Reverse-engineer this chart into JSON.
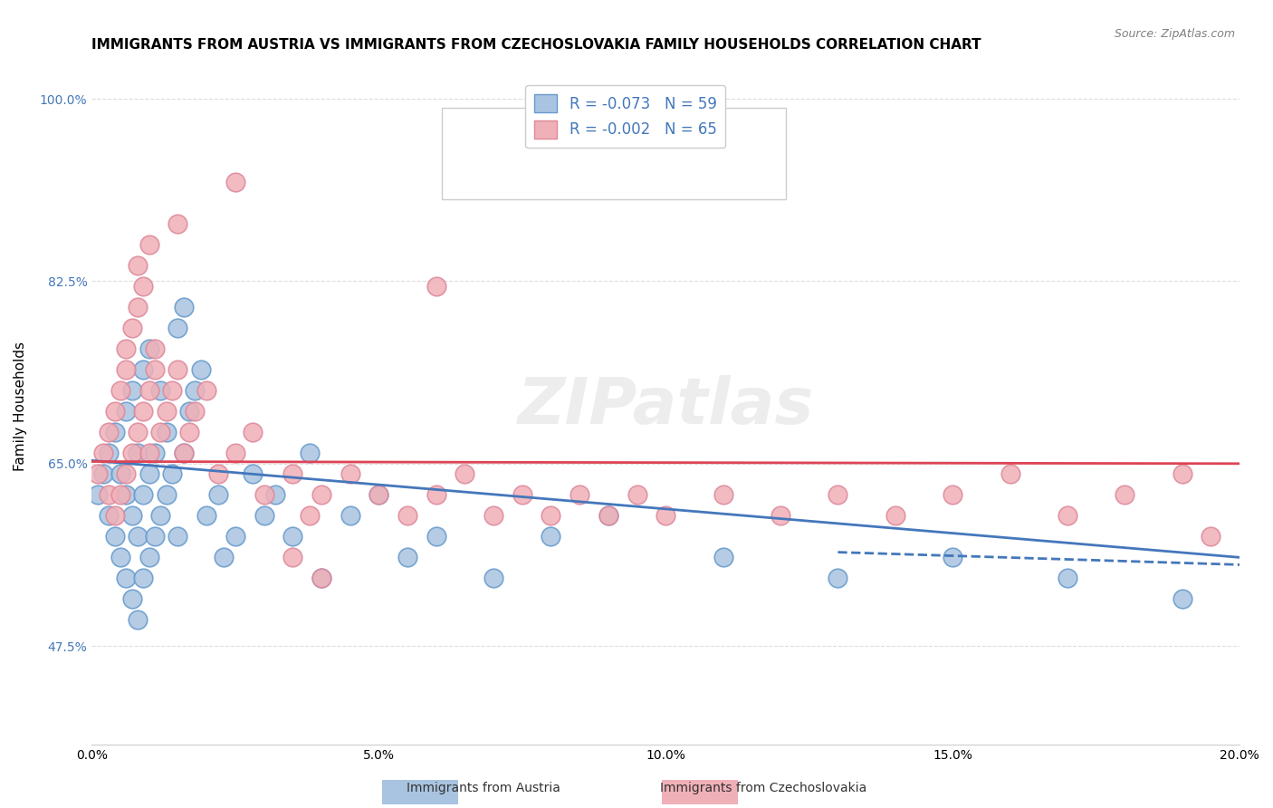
{
  "title": "IMMIGRANTS FROM AUSTRIA VS IMMIGRANTS FROM CZECHOSLOVAKIA FAMILY HOUSEHOLDS CORRELATION CHART",
  "source": "Source: ZipAtlas.com",
  "ylabel": "Family Households",
  "xlabel": "",
  "xlim": [
    0.0,
    0.2
  ],
  "ylim": [
    0.38,
    1.03
  ],
  "yticks": [
    0.475,
    0.65,
    0.825,
    1.0
  ],
  "ytick_labels": [
    "47.5%",
    "65.0%",
    "82.5%",
    "100.0%"
  ],
  "xticks": [
    0.0,
    0.05,
    0.1,
    0.15,
    0.2
  ],
  "xtick_labels": [
    "0.0%",
    "5.0%",
    "10.0%",
    "15.0%",
    "20.0%"
  ],
  "austria_color": "#a8c4e0",
  "austria_edge": "#6699cc",
  "czech_color": "#f0b0b8",
  "czech_edge": "#dd8899",
  "austria_line_color": "#4477bb",
  "czech_line_color": "#dd4455",
  "legend_text_color": "#4477bb",
  "watermark": "ZIPatlas",
  "austria_R": -0.073,
  "austria_N": 59,
  "czech_R": -0.002,
  "czech_N": 65,
  "austria_scatter_x": [
    0.001,
    0.002,
    0.003,
    0.003,
    0.004,
    0.004,
    0.005,
    0.005,
    0.006,
    0.006,
    0.006,
    0.007,
    0.007,
    0.007,
    0.008,
    0.008,
    0.008,
    0.009,
    0.009,
    0.009,
    0.01,
    0.01,
    0.01,
    0.011,
    0.011,
    0.012,
    0.012,
    0.013,
    0.013,
    0.014,
    0.015,
    0.015,
    0.016,
    0.016,
    0.017,
    0.018,
    0.019,
    0.02,
    0.022,
    0.023,
    0.025,
    0.028,
    0.03,
    0.032,
    0.035,
    0.038,
    0.04,
    0.045,
    0.05,
    0.055,
    0.06,
    0.07,
    0.08,
    0.09,
    0.11,
    0.13,
    0.15,
    0.17,
    0.19
  ],
  "austria_scatter_y": [
    0.62,
    0.64,
    0.6,
    0.66,
    0.58,
    0.68,
    0.56,
    0.64,
    0.54,
    0.62,
    0.7,
    0.52,
    0.6,
    0.72,
    0.5,
    0.58,
    0.66,
    0.54,
    0.62,
    0.74,
    0.56,
    0.64,
    0.76,
    0.58,
    0.66,
    0.6,
    0.72,
    0.62,
    0.68,
    0.64,
    0.78,
    0.58,
    0.8,
    0.66,
    0.7,
    0.72,
    0.74,
    0.6,
    0.62,
    0.56,
    0.58,
    0.64,
    0.6,
    0.62,
    0.58,
    0.66,
    0.54,
    0.6,
    0.62,
    0.56,
    0.58,
    0.54,
    0.58,
    0.6,
    0.56,
    0.54,
    0.56,
    0.54,
    0.52
  ],
  "czech_scatter_x": [
    0.001,
    0.002,
    0.003,
    0.003,
    0.004,
    0.004,
    0.005,
    0.005,
    0.006,
    0.006,
    0.006,
    0.007,
    0.007,
    0.008,
    0.008,
    0.009,
    0.009,
    0.01,
    0.01,
    0.011,
    0.011,
    0.012,
    0.013,
    0.014,
    0.015,
    0.016,
    0.017,
    0.018,
    0.02,
    0.022,
    0.025,
    0.028,
    0.03,
    0.035,
    0.038,
    0.04,
    0.045,
    0.05,
    0.055,
    0.06,
    0.065,
    0.07,
    0.075,
    0.08,
    0.085,
    0.09,
    0.095,
    0.1,
    0.11,
    0.12,
    0.13,
    0.14,
    0.15,
    0.16,
    0.17,
    0.18,
    0.19,
    0.195,
    0.035,
    0.04,
    0.025,
    0.015,
    0.01,
    0.008,
    0.06
  ],
  "czech_scatter_y": [
    0.64,
    0.66,
    0.62,
    0.68,
    0.6,
    0.7,
    0.62,
    0.72,
    0.64,
    0.74,
    0.76,
    0.66,
    0.78,
    0.68,
    0.8,
    0.7,
    0.82,
    0.72,
    0.66,
    0.74,
    0.76,
    0.68,
    0.7,
    0.72,
    0.74,
    0.66,
    0.68,
    0.7,
    0.72,
    0.64,
    0.66,
    0.68,
    0.62,
    0.64,
    0.6,
    0.62,
    0.64,
    0.62,
    0.6,
    0.62,
    0.64,
    0.6,
    0.62,
    0.6,
    0.62,
    0.6,
    0.62,
    0.6,
    0.62,
    0.6,
    0.62,
    0.6,
    0.62,
    0.64,
    0.6,
    0.62,
    0.64,
    0.58,
    0.56,
    0.54,
    0.92,
    0.88,
    0.86,
    0.84,
    0.82
  ],
  "austria_trend": [
    0.0,
    0.2
  ],
  "austria_trend_y": [
    0.653,
    0.56
  ],
  "czech_trend": [
    0.0,
    0.2
  ],
  "czech_trend_y": [
    0.652,
    0.65
  ],
  "background_color": "#ffffff",
  "grid_color": "#dddddd",
  "title_fontsize": 11,
  "axis_label_fontsize": 11,
  "tick_fontsize": 10,
  "legend_fontsize": 12
}
